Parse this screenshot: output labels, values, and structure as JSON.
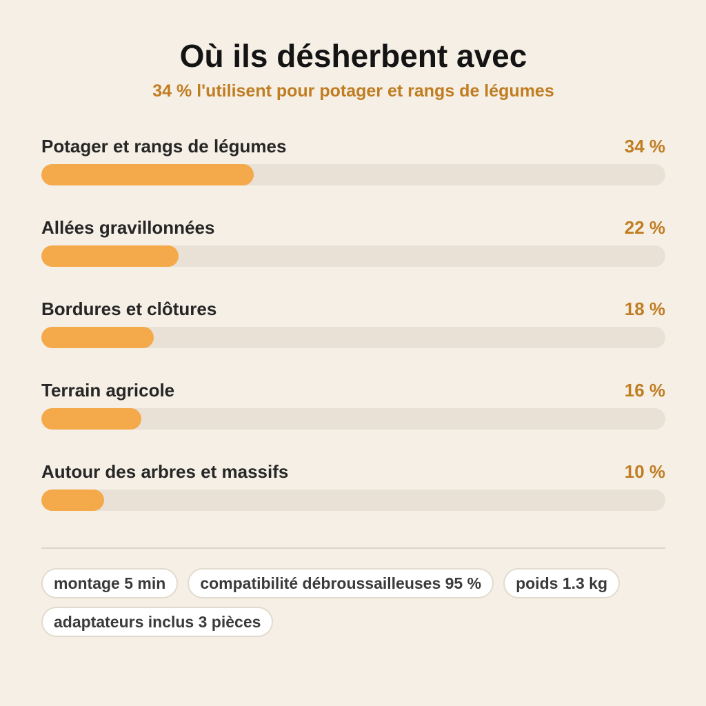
{
  "chart_data": {
    "type": "bar",
    "title": "Où ils désherbent avec",
    "subtitle": "34 % l'utilisent pour potager et rangs de légumes",
    "categories": [
      "Potager et rangs de légumes",
      "Allées gravillonnées",
      "Bordures et clôtures",
      "Terrain agricole",
      "Autour des arbres et massifs"
    ],
    "values": [
      34,
      22,
      18,
      16,
      10
    ],
    "value_labels": [
      "34 %",
      "22 %",
      "18 %",
      "16 %",
      "10 %"
    ],
    "ylim": [
      0,
      100
    ],
    "orientation": "horizontal",
    "grid": false,
    "colors": {
      "fill": "#f4a94b",
      "track": "#e9e1d5",
      "value_text": "#c07d22"
    }
  },
  "chips": [
    "montage 5 min",
    "compatibilité débroussailleuses 95 %",
    "poids 1.3 kg",
    "adaptateurs inclus 3 pièces"
  ]
}
